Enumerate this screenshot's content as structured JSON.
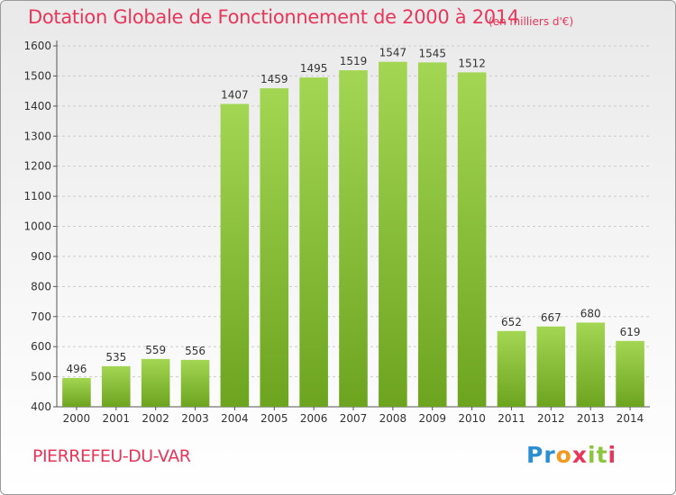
{
  "title": "Dotation Globale de Fonctionnement de 2000 à 2014",
  "unit": "(en milliers d'€)",
  "commune": "PIERREFEU-DU-VAR",
  "logo": {
    "text": "Proxiti",
    "colors": [
      "#2a8fd0",
      "#8cc63e",
      "#f29a1f",
      "#e8365a"
    ]
  },
  "colors": {
    "bar_top": "#a3d653",
    "bar_bottom": "#6da41f",
    "title": "#e8365a",
    "grid": "#cccccc"
  },
  "chart_data": {
    "type": "bar",
    "title": "Dotation Globale de Fonctionnement de 2000 à 2014",
    "categories": [
      "2000",
      "2001",
      "2002",
      "2003",
      "2004",
      "2005",
      "2006",
      "2007",
      "2008",
      "2009",
      "2010",
      "2011",
      "2012",
      "2013",
      "2014"
    ],
    "values": [
      496,
      535,
      559,
      556,
      1407,
      1459,
      1495,
      1519,
      1547,
      1545,
      1512,
      652,
      667,
      680,
      619
    ],
    "ylim": [
      400,
      1600
    ],
    "yticks": [
      400,
      500,
      600,
      700,
      800,
      900,
      1000,
      1100,
      1200,
      1300,
      1400,
      1500,
      1600
    ],
    "grid": true,
    "data_labels": true
  }
}
